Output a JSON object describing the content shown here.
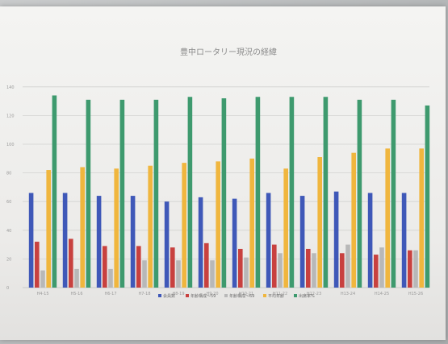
{
  "chart_data": {
    "type": "bar",
    "title": "豊中ロータリー現況の経緯",
    "categories": [
      "H4-15",
      "H5-16",
      "H6-17",
      "H7-18",
      "H8-19",
      "H9-20",
      "H10-21",
      "H11-22",
      "H12-23",
      "H13-24",
      "H14-25",
      "H15-26"
    ],
    "y_tick_labels": [
      "0",
      "20",
      "40",
      "60",
      "80",
      "100",
      "120",
      "140"
    ],
    "ylim": [
      0,
      150
    ],
    "grid": true,
    "legend_position": "bottom",
    "series": [
      {
        "name": "会員数",
        "color": "#3f58b8",
        "values": [
          66,
          66,
          64,
          64,
          60,
          63,
          62,
          66,
          64,
          67,
          66,
          66
        ]
      },
      {
        "name": "年齢構成～59",
        "color": "#c8413f",
        "values": [
          32,
          34,
          29,
          29,
          28,
          31,
          27,
          30,
          27,
          24,
          23,
          26
        ]
      },
      {
        "name": "年齢構成～69",
        "color": "#b8b8b8",
        "values": [
          12,
          13,
          13,
          19,
          19,
          19,
          21,
          24,
          24,
          30,
          28,
          26
        ]
      },
      {
        "name": "平均年齢",
        "color": "#f0b63e",
        "values": [
          82,
          84,
          83,
          85,
          87,
          88,
          90,
          83,
          91,
          94,
          97,
          97
        ]
      },
      {
        "name": "出席率%",
        "color": "#3e9a6e",
        "values": [
          134,
          131,
          131,
          131,
          133,
          132,
          133,
          133,
          133,
          131,
          131,
          127
        ]
      }
    ]
  }
}
